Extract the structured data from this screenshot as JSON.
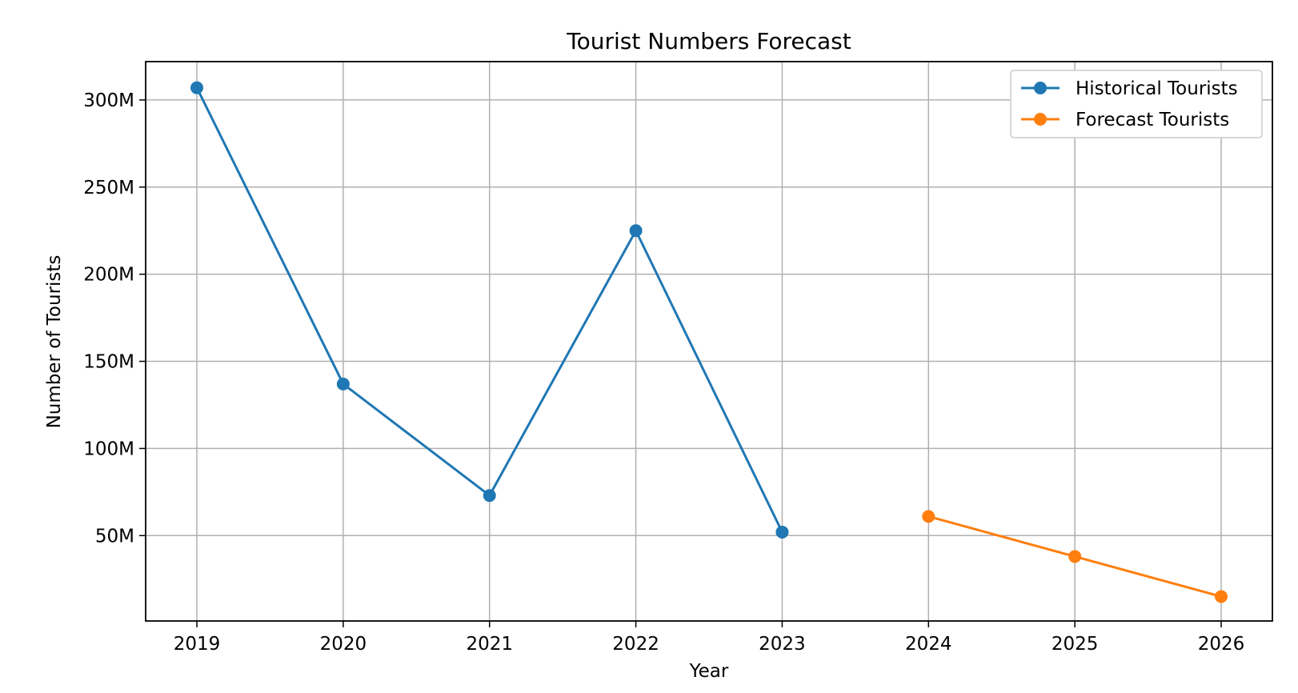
{
  "chart_data": {
    "type": "line",
    "title": "Tourist Numbers Forecast",
    "xlabel": "Year",
    "ylabel": "Number of Tourists",
    "categories": [
      "2019",
      "2020",
      "2021",
      "2022",
      "2023",
      "2024",
      "2025",
      "2026"
    ],
    "x_ticks": [
      "2019",
      "2020",
      "2021",
      "2022",
      "2023",
      "2024",
      "2025",
      "2026"
    ],
    "y_ticks": [
      {
        "value": 50000000,
        "label": "50M"
      },
      {
        "value": 100000000,
        "label": "100M"
      },
      {
        "value": 150000000,
        "label": "150M"
      },
      {
        "value": 200000000,
        "label": "200M"
      },
      {
        "value": 250000000,
        "label": "250M"
      },
      {
        "value": 300000000,
        "label": "300M"
      }
    ],
    "xlim": [
      2018.65,
      2026.35
    ],
    "ylim": [
      1000000,
      322000000
    ],
    "grid": true,
    "legend_position": "top-right",
    "series": [
      {
        "name": "Historical Tourists",
        "color": "#1f77b4",
        "marker": "circle",
        "points": [
          {
            "x": 2019,
            "y": 307000000
          },
          {
            "x": 2020,
            "y": 137000000
          },
          {
            "x": 2021,
            "y": 73000000
          },
          {
            "x": 2022,
            "y": 225000000
          },
          {
            "x": 2023,
            "y": 52000000
          }
        ]
      },
      {
        "name": "Forecast Tourists",
        "color": "#ff7f0e",
        "marker": "circle",
        "points": [
          {
            "x": 2024,
            "y": 61000000
          },
          {
            "x": 2025,
            "y": 38000000
          },
          {
            "x": 2026,
            "y": 15000000
          }
        ]
      }
    ]
  }
}
